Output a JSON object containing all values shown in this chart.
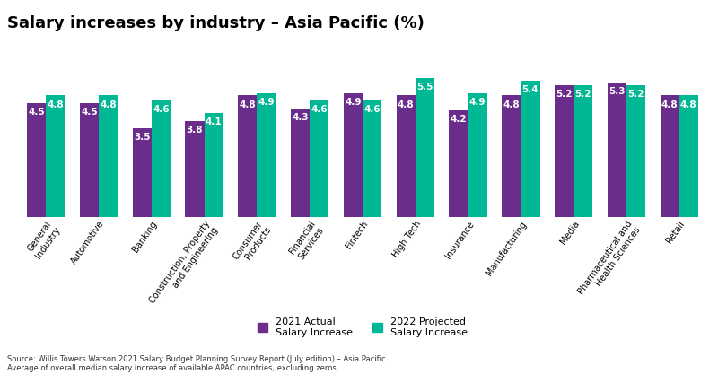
{
  "title": "Salary increases by industry – Asia Pacific (%)",
  "categories": [
    "General\nIndustry",
    "Automotive",
    "Banking",
    "Construction, Property\nand Engineering",
    "Consumer\nProducts",
    "Financial\nServices",
    "Fintech",
    "High Tech",
    "Insurance",
    "Manufacturing",
    "Media",
    "Pharmaceutical and\nHealth Sciences",
    "Retail"
  ],
  "actual_2021": [
    4.5,
    4.5,
    3.5,
    3.8,
    4.8,
    4.3,
    4.9,
    4.8,
    4.2,
    4.8,
    5.2,
    5.3,
    4.8
  ],
  "projected_2022": [
    4.8,
    4.8,
    4.6,
    4.1,
    4.9,
    4.6,
    4.6,
    5.5,
    4.9,
    5.4,
    5.2,
    5.2,
    4.8
  ],
  "color_actual": "#6B2D8B",
  "color_projected": "#00B894",
  "bar_width": 0.36,
  "ylim": [
    0,
    6.8
  ],
  "legend_actual": "2021 Actual\nSalary Increase",
  "legend_projected": "2022 Projected\nSalary Increase",
  "source_text": "Source: Willis Towers Watson 2021 Salary Budget Planning Survey Report (July edition) – Asia Pacific\nAverage of overall median salary increase of available APAC countries, excluding zeros",
  "title_fontsize": 13,
  "label_fontsize": 7.0,
  "bar_label_fontsize": 7.5,
  "source_fontsize": 6.0,
  "background_color": "#ffffff"
}
